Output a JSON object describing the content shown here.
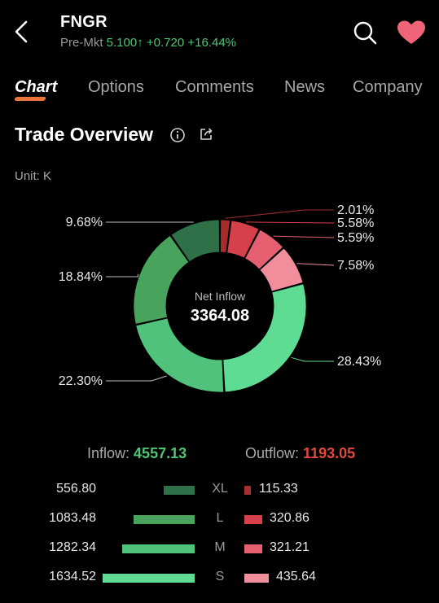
{
  "header": {
    "ticker": "FNGR",
    "premarket_label": "Pre-Mkt",
    "price": "5.100",
    "change": "+0.720",
    "change_pct": "+16.44%"
  },
  "tabs": [
    {
      "label": "Chart",
      "active": true
    },
    {
      "label": "Options",
      "active": false
    },
    {
      "label": "Comments",
      "active": false
    },
    {
      "label": "News",
      "active": false
    },
    {
      "label": "Company",
      "active": false
    }
  ],
  "section": {
    "title": "Trade Overview",
    "unit": "Unit: K"
  },
  "donut": {
    "center_label": "Net Inflow",
    "center_value": "3364.08",
    "segments": [
      {
        "label": "2.01%",
        "value": 2.01,
        "color": "#a62d2d"
      },
      {
        "label": "5.58%",
        "value": 5.58,
        "color": "#d5404a"
      },
      {
        "label": "5.59%",
        "value": 5.59,
        "color": "#e45f6f"
      },
      {
        "label": "7.58%",
        "value": 7.58,
        "color": "#f08e9c"
      },
      {
        "label": "28.43%",
        "value": 28.43,
        "color": "#5fdc93"
      },
      {
        "label": "22.30%",
        "value": 22.3,
        "color": "#50c27c"
      },
      {
        "label": "18.84%",
        "value": 18.84,
        "color": "#48a45c"
      },
      {
        "label": "9.68%",
        "value": 9.68,
        "color": "#2f7049"
      }
    ]
  },
  "flow": {
    "inflow_label": "Inflow:",
    "inflow_value": "4557.13",
    "outflow_label": "Outflow:",
    "outflow_value": "1193.05"
  },
  "breakdown": [
    {
      "size": "XL",
      "inflow": "556.80",
      "inflow_value": 556.8,
      "inflow_color": "#2f7049",
      "outflow": "115.33",
      "outflow_value": 115.33,
      "outflow_color": "#a62d2d"
    },
    {
      "size": "L",
      "inflow": "1083.48",
      "inflow_value": 1083.48,
      "inflow_color": "#48a45c",
      "outflow": "320.86",
      "outflow_value": 320.86,
      "outflow_color": "#d5404a"
    },
    {
      "size": "M",
      "inflow": "1282.34",
      "inflow_value": 1282.34,
      "inflow_color": "#50c27c",
      "outflow": "321.21",
      "outflow_value": 321.21,
      "outflow_color": "#e45f6f"
    },
    {
      "size": "S",
      "inflow": "1634.52",
      "inflow_value": 1634.52,
      "inflow_color": "#5fdc93",
      "outflow": "435.64",
      "outflow_value": 435.64,
      "outflow_color": "#f08e9c"
    }
  ]
}
